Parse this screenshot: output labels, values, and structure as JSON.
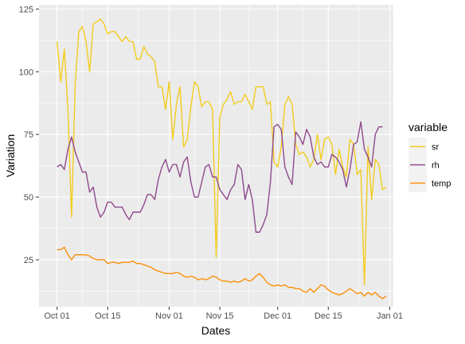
{
  "chart_data": {
    "type": "line",
    "xlabel": "Dates",
    "ylabel": "Variation",
    "x_tick_labels": [
      "Oct 01",
      "Oct 15",
      "Nov 01",
      "Nov 15",
      "Dec 01",
      "Dec 15",
      "Jan 01"
    ],
    "x_tick_dates": [
      "2016-10-01",
      "2016-10-15",
      "2016-11-01",
      "2016-11-15",
      "2016-12-01",
      "2016-12-15",
      "2017-01-01"
    ],
    "xlim": [
      "2016-09-26",
      "2017-01-02"
    ],
    "y_ticks": [
      25,
      50,
      75,
      100,
      125
    ],
    "ylim": [
      6.3,
      126.7
    ],
    "grid": true,
    "legend": {
      "title": "variable",
      "position": "right"
    },
    "series": [
      {
        "name": "sr",
        "color": "#F2CC1D",
        "points": [
          [
            "2016-10-01",
            112
          ],
          [
            "2016-10-02",
            96
          ],
          [
            "2016-10-03",
            109
          ],
          [
            "2016-10-04",
            85
          ],
          [
            "2016-10-05",
            42
          ],
          [
            "2016-10-06",
            95
          ],
          [
            "2016-10-07",
            116
          ],
          [
            "2016-10-08",
            118
          ],
          [
            "2016-10-09",
            112
          ],
          [
            "2016-10-10",
            100
          ],
          [
            "2016-10-11",
            119
          ],
          [
            "2016-10-12",
            120
          ],
          [
            "2016-10-13",
            121
          ],
          [
            "2016-10-14",
            119
          ],
          [
            "2016-10-15",
            115
          ],
          [
            "2016-10-16",
            116
          ],
          [
            "2016-10-17",
            116
          ],
          [
            "2016-10-18",
            114
          ],
          [
            "2016-10-19",
            112
          ],
          [
            "2016-10-20",
            114
          ],
          [
            "2016-10-21",
            112
          ],
          [
            "2016-10-22",
            112
          ],
          [
            "2016-10-23",
            105
          ],
          [
            "2016-10-24",
            105
          ],
          [
            "2016-10-25",
            110
          ],
          [
            "2016-10-26",
            107
          ],
          [
            "2016-10-27",
            106
          ],
          [
            "2016-10-28",
            104
          ],
          [
            "2016-10-29",
            94
          ],
          [
            "2016-10-30",
            94
          ],
          [
            "2016-10-31",
            85
          ],
          [
            "2016-11-01",
            96
          ],
          [
            "2016-11-02",
            73
          ],
          [
            "2016-11-03",
            87
          ],
          [
            "2016-11-04",
            94
          ],
          [
            "2016-11-05",
            70
          ],
          [
            "2016-11-06",
            73
          ],
          [
            "2016-11-07",
            86
          ],
          [
            "2016-11-08",
            96
          ],
          [
            "2016-11-09",
            94
          ],
          [
            "2016-11-10",
            86
          ],
          [
            "2016-11-11",
            88
          ],
          [
            "2016-11-12",
            88
          ],
          [
            "2016-11-13",
            85
          ],
          [
            "2016-11-14",
            26
          ],
          [
            "2016-11-15",
            82
          ],
          [
            "2016-11-16",
            87
          ],
          [
            "2016-11-17",
            89
          ],
          [
            "2016-11-18",
            92
          ],
          [
            "2016-11-19",
            87
          ],
          [
            "2016-11-20",
            88
          ],
          [
            "2016-11-21",
            88
          ],
          [
            "2016-11-22",
            91
          ],
          [
            "2016-11-23",
            88
          ],
          [
            "2016-11-24",
            85
          ],
          [
            "2016-11-25",
            94
          ],
          [
            "2016-11-26",
            94
          ],
          [
            "2016-11-27",
            94
          ],
          [
            "2016-11-28",
            87
          ],
          [
            "2016-11-29",
            88
          ],
          [
            "2016-11-30",
            64
          ],
          [
            "2016-12-01",
            62
          ],
          [
            "2016-12-02",
            70
          ],
          [
            "2016-12-03",
            87
          ],
          [
            "2016-12-04",
            90
          ],
          [
            "2016-12-05",
            87
          ],
          [
            "2016-12-06",
            71
          ],
          [
            "2016-12-07",
            67
          ],
          [
            "2016-12-08",
            68
          ],
          [
            "2016-12-09",
            66
          ],
          [
            "2016-12-10",
            62
          ],
          [
            "2016-12-11",
            65
          ],
          [
            "2016-12-12",
            75
          ],
          [
            "2016-12-13",
            65
          ],
          [
            "2016-12-14",
            73
          ],
          [
            "2016-12-15",
            74
          ],
          [
            "2016-12-16",
            71
          ],
          [
            "2016-12-17",
            59
          ],
          [
            "2016-12-18",
            69
          ],
          [
            "2016-12-19",
            62
          ],
          [
            "2016-12-20",
            58
          ],
          [
            "2016-12-21",
            73
          ],
          [
            "2016-12-22",
            71
          ],
          [
            "2016-12-23",
            59
          ],
          [
            "2016-12-24",
            61
          ],
          [
            "2016-12-25",
            15
          ],
          [
            "2016-12-26",
            70
          ],
          [
            "2016-12-27",
            49
          ],
          [
            "2016-12-28",
            65
          ],
          [
            "2016-12-29",
            63
          ],
          [
            "2016-12-30",
            53
          ],
          [
            "2016-12-31",
            54
          ]
        ]
      },
      {
        "name": "rh",
        "color": "#8F4A8C",
        "points": [
          [
            "2016-10-01",
            62
          ],
          [
            "2016-10-02",
            63
          ],
          [
            "2016-10-03",
            61
          ],
          [
            "2016-10-04",
            69
          ],
          [
            "2016-10-05",
            74
          ],
          [
            "2016-10-06",
            68
          ],
          [
            "2016-10-07",
            64
          ],
          [
            "2016-10-08",
            60
          ],
          [
            "2016-10-09",
            60
          ],
          [
            "2016-10-10",
            52
          ],
          [
            "2016-10-11",
            54
          ],
          [
            "2016-10-12",
            46
          ],
          [
            "2016-10-13",
            42
          ],
          [
            "2016-10-14",
            44
          ],
          [
            "2016-10-15",
            48
          ],
          [
            "2016-10-16",
            48
          ],
          [
            "2016-10-17",
            46
          ],
          [
            "2016-10-18",
            46
          ],
          [
            "2016-10-19",
            46
          ],
          [
            "2016-10-20",
            43
          ],
          [
            "2016-10-21",
            41
          ],
          [
            "2016-10-22",
            44
          ],
          [
            "2016-10-23",
            44
          ],
          [
            "2016-10-24",
            44
          ],
          [
            "2016-10-25",
            47
          ],
          [
            "2016-10-26",
            51
          ],
          [
            "2016-10-27",
            51
          ],
          [
            "2016-10-28",
            49
          ],
          [
            "2016-10-29",
            57
          ],
          [
            "2016-10-30",
            62
          ],
          [
            "2016-10-31",
            65
          ],
          [
            "2016-11-01",
            60
          ],
          [
            "2016-11-02",
            63
          ],
          [
            "2016-11-03",
            63
          ],
          [
            "2016-11-04",
            58
          ],
          [
            "2016-11-05",
            64
          ],
          [
            "2016-11-06",
            66
          ],
          [
            "2016-11-07",
            56
          ],
          [
            "2016-11-08",
            50
          ],
          [
            "2016-11-09",
            50
          ],
          [
            "2016-11-10",
            56
          ],
          [
            "2016-11-11",
            62
          ],
          [
            "2016-11-12",
            63
          ],
          [
            "2016-11-13",
            58
          ],
          [
            "2016-11-14",
            58
          ],
          [
            "2016-11-15",
            53
          ],
          [
            "2016-11-16",
            51
          ],
          [
            "2016-11-17",
            49
          ],
          [
            "2016-11-18",
            53
          ],
          [
            "2016-11-19",
            55
          ],
          [
            "2016-11-20",
            63
          ],
          [
            "2016-11-21",
            61
          ],
          [
            "2016-11-22",
            49
          ],
          [
            "2016-11-23",
            55
          ],
          [
            "2016-11-24",
            49
          ],
          [
            "2016-11-25",
            36
          ],
          [
            "2016-11-26",
            36
          ],
          [
            "2016-11-27",
            39
          ],
          [
            "2016-11-28",
            43
          ],
          [
            "2016-11-29",
            56
          ],
          [
            "2016-11-30",
            78
          ],
          [
            "2016-12-01",
            79
          ],
          [
            "2016-12-02",
            77
          ],
          [
            "2016-12-03",
            62
          ],
          [
            "2016-12-04",
            58
          ],
          [
            "2016-12-05",
            55
          ],
          [
            "2016-12-06",
            76
          ],
          [
            "2016-12-07",
            74
          ],
          [
            "2016-12-08",
            71
          ],
          [
            "2016-12-09",
            77
          ],
          [
            "2016-12-10",
            74
          ],
          [
            "2016-12-11",
            66
          ],
          [
            "2016-12-12",
            63
          ],
          [
            "2016-12-13",
            64
          ],
          [
            "2016-12-14",
            62
          ],
          [
            "2016-12-15",
            62
          ],
          [
            "2016-12-16",
            67
          ],
          [
            "2016-12-17",
            66
          ],
          [
            "2016-12-18",
            64
          ],
          [
            "2016-12-19",
            61
          ],
          [
            "2016-12-20",
            54
          ],
          [
            "2016-12-21",
            61
          ],
          [
            "2016-12-22",
            71
          ],
          [
            "2016-12-23",
            72
          ],
          [
            "2016-12-24",
            80
          ],
          [
            "2016-12-25",
            69
          ],
          [
            "2016-12-26",
            66
          ],
          [
            "2016-12-27",
            62
          ],
          [
            "2016-12-28",
            75
          ],
          [
            "2016-12-29",
            78
          ],
          [
            "2016-12-30",
            78
          ]
        ]
      },
      {
        "name": "temp",
        "color": "#FA8F08",
        "points": [
          [
            "2016-10-01",
            29
          ],
          [
            "2016-10-02",
            29
          ],
          [
            "2016-10-03",
            30
          ],
          [
            "2016-10-04",
            27
          ],
          [
            "2016-10-05",
            25
          ],
          [
            "2016-10-06",
            27
          ],
          [
            "2016-10-07",
            27
          ],
          [
            "2016-10-08",
            27
          ],
          [
            "2016-10-09",
            27
          ],
          [
            "2016-10-10",
            26.5
          ],
          [
            "2016-10-11",
            25.5
          ],
          [
            "2016-10-12",
            25
          ],
          [
            "2016-10-13",
            25
          ],
          [
            "2016-10-14",
            25
          ],
          [
            "2016-10-15",
            23.5
          ],
          [
            "2016-10-16",
            24
          ],
          [
            "2016-10-17",
            24
          ],
          [
            "2016-10-18",
            23.5
          ],
          [
            "2016-10-19",
            24
          ],
          [
            "2016-10-20",
            24
          ],
          [
            "2016-10-21",
            24
          ],
          [
            "2016-10-22",
            24.5
          ],
          [
            "2016-10-23",
            23.5
          ],
          [
            "2016-10-24",
            23.5
          ],
          [
            "2016-10-25",
            23
          ],
          [
            "2016-10-26",
            22.5
          ],
          [
            "2016-10-27",
            22
          ],
          [
            "2016-10-28",
            21
          ],
          [
            "2016-10-29",
            20.5
          ],
          [
            "2016-10-30",
            20
          ],
          [
            "2016-10-31",
            19.5
          ],
          [
            "2016-11-01",
            19.5
          ],
          [
            "2016-11-02",
            19.5
          ],
          [
            "2016-11-03",
            20
          ],
          [
            "2016-11-04",
            19.5
          ],
          [
            "2016-11-05",
            18.5
          ],
          [
            "2016-11-06",
            18
          ],
          [
            "2016-11-07",
            18.5
          ],
          [
            "2016-11-08",
            18
          ],
          [
            "2016-11-09",
            17
          ],
          [
            "2016-11-10",
            17.5
          ],
          [
            "2016-11-11",
            17
          ],
          [
            "2016-11-12",
            17.5
          ],
          [
            "2016-11-13",
            18.5
          ],
          [
            "2016-11-14",
            18
          ],
          [
            "2016-11-15",
            17
          ],
          [
            "2016-11-16",
            16.5
          ],
          [
            "2016-11-17",
            16.5
          ],
          [
            "2016-11-18",
            16
          ],
          [
            "2016-11-19",
            16.5
          ],
          [
            "2016-11-20",
            16
          ],
          [
            "2016-11-21",
            16.5
          ],
          [
            "2016-11-22",
            17.5
          ],
          [
            "2016-11-23",
            16.5
          ],
          [
            "2016-11-24",
            17
          ],
          [
            "2016-11-25",
            18.5
          ],
          [
            "2016-11-26",
            19.5
          ],
          [
            "2016-11-27",
            18
          ],
          [
            "2016-11-28",
            16
          ],
          [
            "2016-11-29",
            15
          ],
          [
            "2016-11-30",
            14.5
          ],
          [
            "2016-12-01",
            15
          ],
          [
            "2016-12-02",
            14.5
          ],
          [
            "2016-12-03",
            15
          ],
          [
            "2016-12-04",
            14
          ],
          [
            "2016-12-05",
            14
          ],
          [
            "2016-12-06",
            13.5
          ],
          [
            "2016-12-07",
            13.5
          ],
          [
            "2016-12-08",
            12.5
          ],
          [
            "2016-12-09",
            12
          ],
          [
            "2016-12-10",
            13.5
          ],
          [
            "2016-12-11",
            12
          ],
          [
            "2016-12-12",
            13.5
          ],
          [
            "2016-12-13",
            15
          ],
          [
            "2016-12-14",
            14.5
          ],
          [
            "2016-12-15",
            13
          ],
          [
            "2016-12-16",
            12
          ],
          [
            "2016-12-17",
            11.5
          ],
          [
            "2016-12-18",
            11
          ],
          [
            "2016-12-19",
            11.5
          ],
          [
            "2016-12-20",
            12.5
          ],
          [
            "2016-12-21",
            13.5
          ],
          [
            "2016-12-22",
            12.5
          ],
          [
            "2016-12-23",
            11.5
          ],
          [
            "2016-12-24",
            12
          ],
          [
            "2016-12-25",
            10.5
          ],
          [
            "2016-12-26",
            12
          ],
          [
            "2016-12-27",
            11
          ],
          [
            "2016-12-28",
            12
          ],
          [
            "2016-12-29",
            10.5
          ],
          [
            "2016-12-30",
            9.5
          ],
          [
            "2016-12-31",
            10.5
          ]
        ]
      }
    ]
  }
}
